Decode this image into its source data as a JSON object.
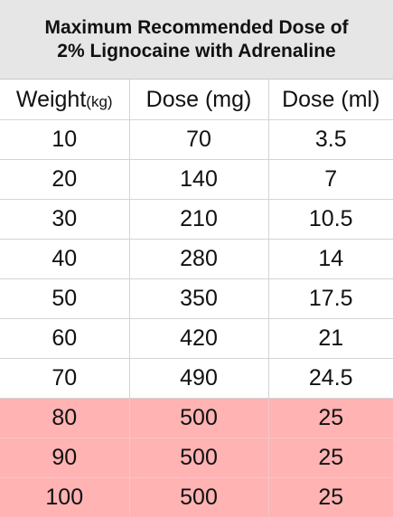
{
  "title": {
    "line1": "Maximum Recommended Dose of",
    "line2": "2% Lignocaine with Adrenaline"
  },
  "headers": {
    "weight": "Weight",
    "weight_unit": "(kg)",
    "dose_mg": "Dose (mg)",
    "dose_ml": "Dose (ml)"
  },
  "highlight_color": "#ffb3b3",
  "rows": [
    {
      "weight": "10",
      "mg": "70",
      "ml": "3.5",
      "highlight": false
    },
    {
      "weight": "20",
      "mg": "140",
      "ml": "7",
      "highlight": false
    },
    {
      "weight": "30",
      "mg": "210",
      "ml": "10.5",
      "highlight": false
    },
    {
      "weight": "40",
      "mg": "280",
      "ml": "14",
      "highlight": false
    },
    {
      "weight": "50",
      "mg": "350",
      "ml": "17.5",
      "highlight": false
    },
    {
      "weight": "60",
      "mg": "420",
      "ml": "21",
      "highlight": false
    },
    {
      "weight": "70",
      "mg": "490",
      "ml": "24.5",
      "highlight": false
    },
    {
      "weight": "80",
      "mg": "500",
      "ml": "25",
      "highlight": true
    },
    {
      "weight": "90",
      "mg": "500",
      "ml": "25",
      "highlight": true
    },
    {
      "weight": "100",
      "mg": "500",
      "ml": "25",
      "highlight": true
    }
  ]
}
